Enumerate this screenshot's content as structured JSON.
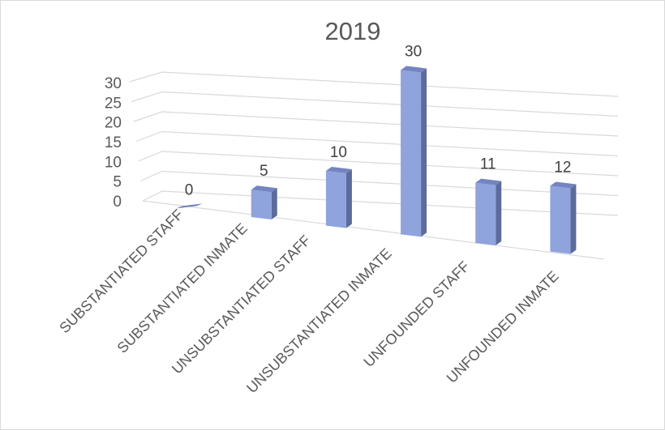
{
  "chart_data": {
    "type": "bar",
    "title": "2019",
    "categories": [
      "SUBSTANTIATED STAFF",
      "SUBSTANTIATED INMATE",
      "UNSUBSTANTIATED STAFF",
      "UNSUBSTANTIATED INMATE",
      "UNFOUNDED STAFF",
      "UNFOUNDED INMATE"
    ],
    "values": [
      0,
      5,
      10,
      30,
      11,
      12
    ],
    "ylim": [
      0,
      30
    ],
    "yticks": [
      0,
      5,
      10,
      15,
      20,
      25,
      30
    ],
    "grid": true,
    "legend": "none",
    "style": "3d-column",
    "colors": {
      "bar_front": "#8fa3dc",
      "bar_side": "#5b6b9a",
      "bar_top": "#7484c0",
      "grid": "#d9d9d9",
      "text": "#595959"
    }
  }
}
